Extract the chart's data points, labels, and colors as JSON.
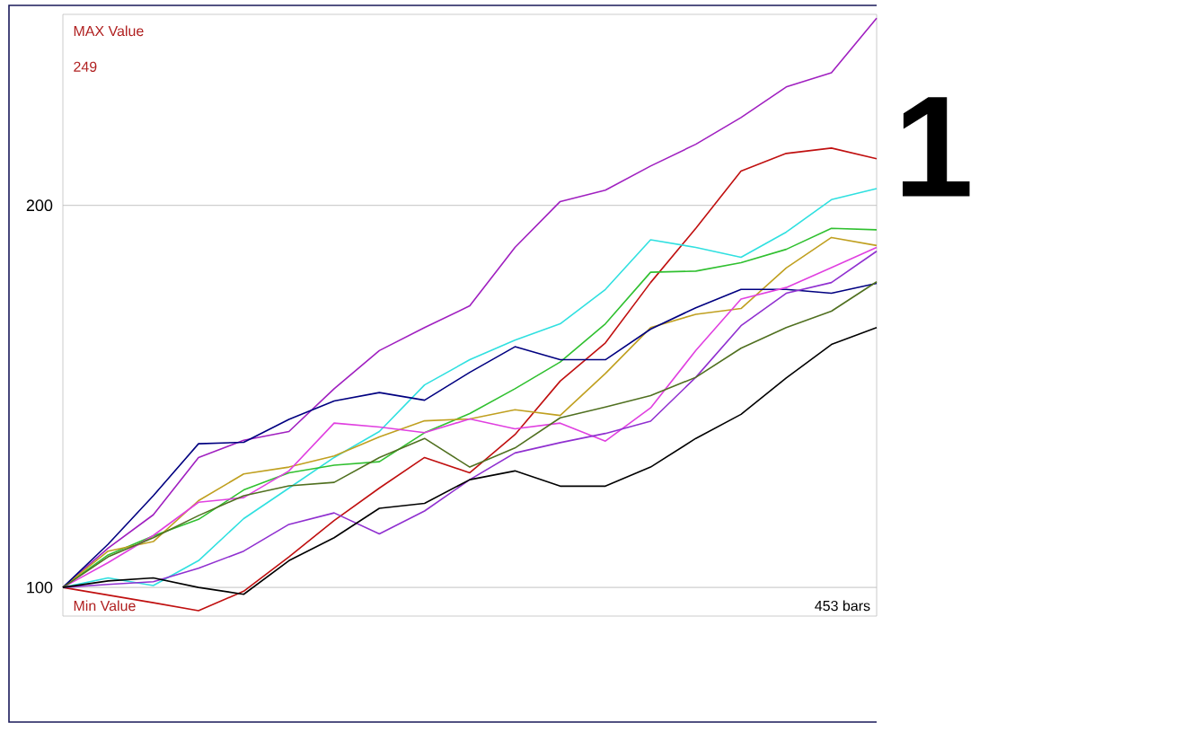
{
  "chart_data": {
    "type": "line",
    "ylim": [
      92.5,
      250
    ],
    "yticks": [
      100,
      200
    ],
    "tick_labels": "y",
    "grid": "y",
    "marker": "none",
    "line_style": "solid",
    "categories": [
      null,
      null,
      null,
      null,
      null,
      null,
      null,
      null,
      null,
      null,
      null,
      null,
      null,
      null,
      null,
      null,
      null,
      null,
      null
    ],
    "annotations": [
      "MAX Value",
      "249",
      "Min Value",
      "453 bars",
      "1"
    ],
    "series": [
      {
        "color": "#a020c0",
        "values": [
          100,
          110.3,
          119,
          134,
          138.5,
          140.8,
          152,
          162,
          168,
          173.7,
          189,
          201,
          204,
          210.3,
          216,
          223,
          231,
          234.7,
          249
        ]
      },
      {
        "color": "#c01010",
        "values": [
          100,
          98,
          96,
          93.9,
          99,
          108,
          117.5,
          126,
          134,
          130,
          140,
          154,
          164,
          179.8,
          194,
          209,
          213.6,
          215,
          212.2
        ]
      },
      {
        "color": "#30e0e0",
        "values": [
          100,
          102.5,
          100.5,
          107,
          118,
          126,
          134,
          140.8,
          153,
          159.6,
          164.7,
          169,
          178,
          191,
          189,
          186.4,
          193,
          201.5,
          204.4
        ]
      },
      {
        "color": "#30c030",
        "values": [
          100,
          108.5,
          113.5,
          117.8,
          125.5,
          130,
          132,
          132.9,
          140.5,
          145.5,
          152,
          159,
          169,
          182.5,
          182.8,
          185,
          188.5,
          194,
          193.6
        ]
      },
      {
        "color": "#c0a020",
        "values": [
          100,
          109.5,
          112,
          122.7,
          129.7,
          131.5,
          134.4,
          139.4,
          143.6,
          144.1,
          146.5,
          145,
          156,
          168,
          171.5,
          173,
          183.6,
          191.6,
          189.5
        ]
      },
      {
        "color": "#000080",
        "values": [
          100,
          111.3,
          124,
          137.6,
          138,
          144,
          148.8,
          151,
          149,
          156.3,
          163,
          159.6,
          159.6,
          167.6,
          173.2,
          178,
          178,
          177,
          179.6
        ]
      },
      {
        "color": "#e040e0",
        "values": [
          100,
          106.5,
          113.6,
          122.3,
          123.5,
          130.5,
          143,
          142,
          140.5,
          144.1,
          141.5,
          143,
          138.3,
          147,
          162,
          175.5,
          178.5,
          183.7,
          189
        ]
      },
      {
        "color": "#9030d0",
        "values": [
          100,
          100.8,
          101.5,
          105,
          109.5,
          116.5,
          119.5,
          114,
          120,
          128.2,
          135.2,
          137.9,
          140.3,
          143.5,
          155,
          168.5,
          177,
          179.8,
          188
        ]
      },
      {
        "color": "#507020",
        "values": [
          100,
          108,
          113,
          118.8,
          124,
          126.6,
          127.5,
          134,
          139,
          131.5,
          136.5,
          144.4,
          147.2,
          150.2,
          155,
          162.6,
          168,
          172.3,
          180
        ]
      },
      {
        "color": "#000000",
        "values": [
          100,
          101.7,
          102.5,
          100,
          98.2,
          107,
          113,
          120.7,
          122,
          128.2,
          130.5,
          126.5,
          126.5,
          131.5,
          139,
          145.3,
          154.8,
          163.6,
          168
        ]
      }
    ]
  }
}
